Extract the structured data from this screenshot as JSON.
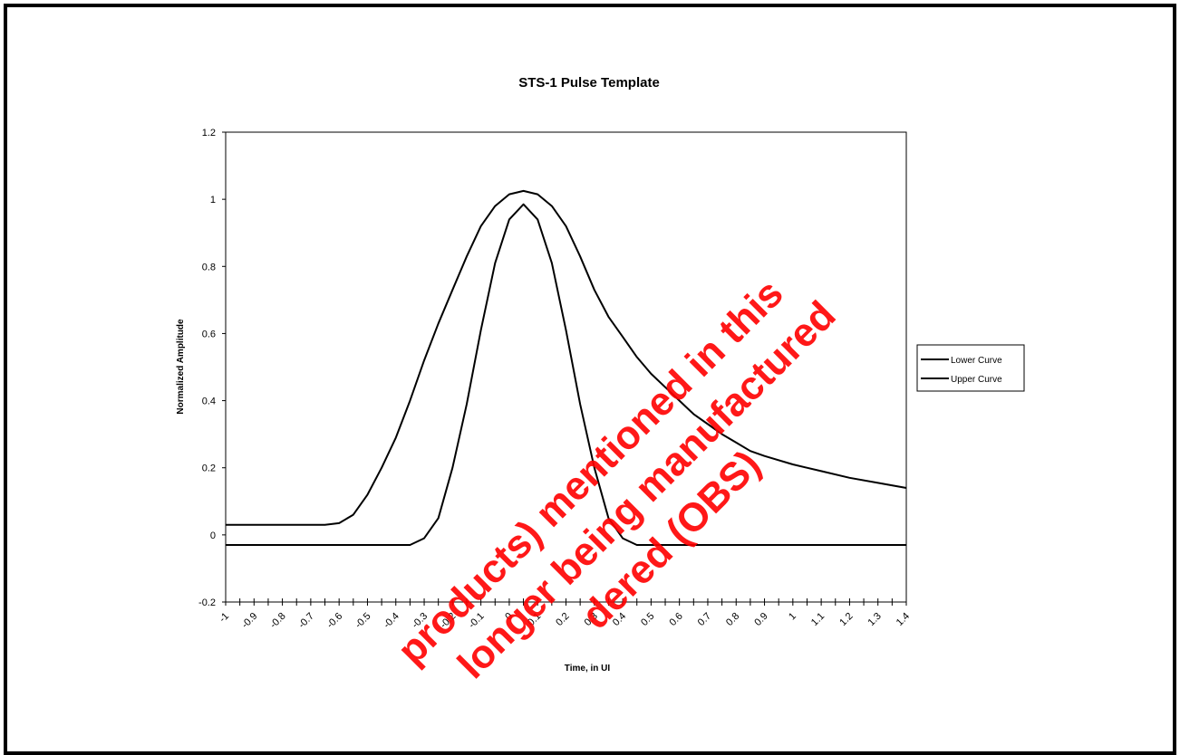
{
  "chart_data": {
    "type": "line",
    "title": "STS-1 Pulse Template",
    "xlabel": "Time, in UI",
    "ylabel": "Normalized Amplitude",
    "xlim": [
      -1,
      1.4
    ],
    "ylim": [
      -0.2,
      1.2
    ],
    "x_ticks": [
      "-1",
      "-0.9",
      "-0.8",
      "-0.7",
      "-0.6",
      "-0.5",
      "-0.4",
      "-0.3",
      "-0.2",
      "-0.1",
      "0",
      "0.1",
      "0.2",
      "0.3",
      "0.4",
      "0.5",
      "0.6",
      "0.7",
      "0.8",
      "0.9",
      "1",
      "1.1",
      "1.2",
      "1.3",
      "1.4"
    ],
    "y_ticks": [
      "1.2",
      "1",
      "0.8",
      "0.6",
      "0.4",
      "0.2",
      "0",
      "-0.2"
    ],
    "grid": false,
    "legend_position": "right",
    "series": [
      {
        "name": "Lower Curve",
        "color": "#000000",
        "x": [
          -1,
          -0.65,
          -0.6,
          -0.5,
          -0.45,
          -0.4,
          -0.35,
          -0.3,
          -0.25,
          -0.2,
          -0.15,
          -0.1,
          -0.05,
          0,
          0.05,
          0.1,
          0.15,
          0.2,
          0.25,
          0.3,
          0.35,
          0.4,
          0.45,
          1.4
        ],
        "values": [
          -0.03,
          -0.03,
          -0.03,
          -0.03,
          -0.03,
          -0.03,
          -0.03,
          -0.01,
          0.05,
          0.2,
          0.39,
          0.61,
          0.81,
          0.94,
          0.985,
          0.94,
          0.81,
          0.61,
          0.39,
          0.2,
          0.05,
          -0.01,
          -0.03,
          -0.03
        ]
      },
      {
        "name": "Upper Curve",
        "color": "#000000",
        "x": [
          -1,
          -0.85,
          -0.75,
          -0.7,
          -0.65,
          -0.6,
          -0.55,
          -0.5,
          -0.45,
          -0.4,
          -0.35,
          -0.3,
          -0.25,
          -0.2,
          -0.15,
          -0.1,
          -0.05,
          0,
          0.05,
          0.1,
          0.15,
          0.2,
          0.25,
          0.3,
          0.35,
          0.4,
          0.45,
          0.5,
          0.55,
          0.6,
          0.65,
          0.7,
          0.75,
          0.8,
          0.85,
          0.9,
          1.0,
          1.1,
          1.2,
          1.3,
          1.4
        ],
        "values": [
          0.03,
          0.03,
          0.03,
          0.03,
          0.03,
          0.035,
          0.06,
          0.12,
          0.2,
          0.29,
          0.4,
          0.52,
          0.63,
          0.73,
          0.83,
          0.92,
          0.98,
          1.015,
          1.025,
          1.015,
          0.98,
          0.92,
          0.83,
          0.73,
          0.65,
          0.59,
          0.53,
          0.48,
          0.44,
          0.4,
          0.36,
          0.33,
          0.3,
          0.275,
          0.25,
          0.235,
          0.21,
          0.19,
          0.17,
          0.155,
          0.14
        ]
      }
    ]
  },
  "watermark": {
    "lines": [
      "products) mentioned in this",
      "longer being manufactured",
      "dered (OBS)"
    ],
    "color": "#ff0000"
  }
}
